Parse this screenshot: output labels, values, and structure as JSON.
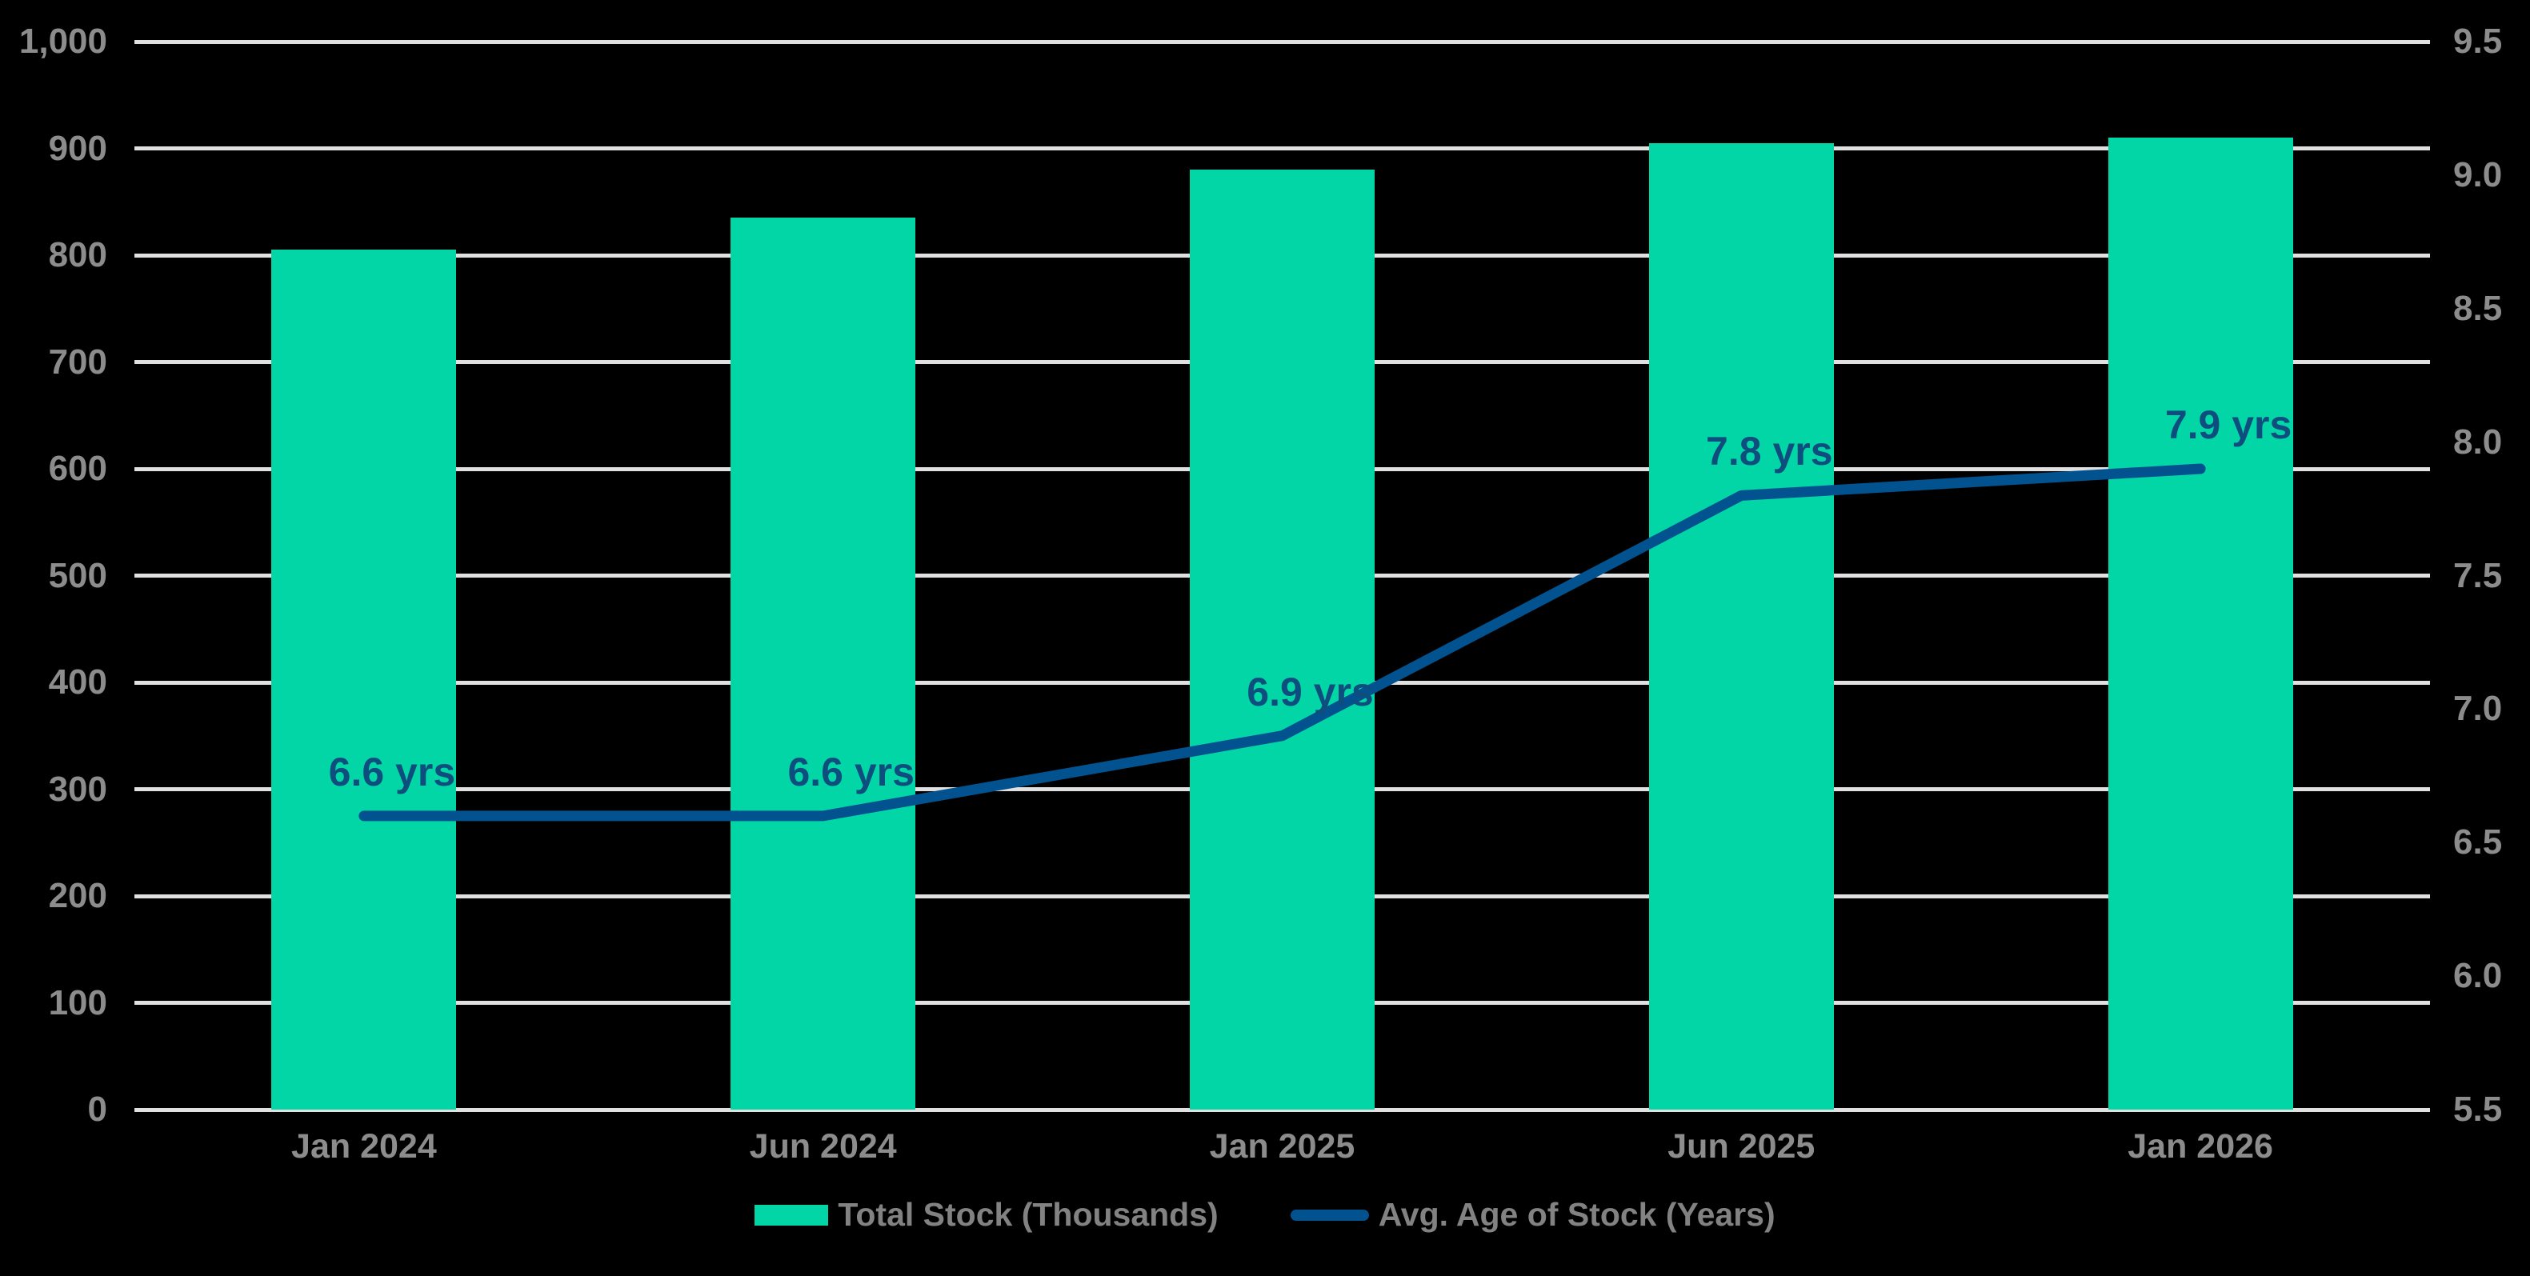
{
  "chart_data": {
    "type": "combo-bar-line",
    "categories": [
      "Jan 2024",
      "Jun 2024",
      "Jan 2025",
      "Jun 2025",
      "Jan 2026"
    ],
    "series": [
      {
        "name": "Total Stock (Thousands)",
        "type": "bar",
        "color": "#02D6A6",
        "values": [
          805,
          835,
          880,
          905,
          910
        ]
      },
      {
        "name": "Avg. Age of Stock (Years)",
        "type": "line",
        "color": "#02528F",
        "values": [
          6.6,
          6.6,
          6.9,
          7.8,
          7.9
        ],
        "point_labels": [
          "6.6 yrs",
          "6.6 yrs",
          "6.9 yrs",
          "7.8 yrs",
          "7.9 yrs"
        ]
      }
    ],
    "left_axis": {
      "min": 0,
      "max": 1000,
      "tick_values": [
        0,
        100,
        200,
        300,
        400,
        500,
        600,
        700,
        800,
        900,
        1000
      ],
      "tick_labels": [
        "0",
        "100",
        "200",
        "300",
        "400",
        "500",
        "600",
        "700",
        "800",
        "900",
        "1,000"
      ]
    },
    "right_axis": {
      "min": 5.5,
      "max": 9.5,
      "tick_values": [
        5.5,
        6.0,
        6.5,
        7.0,
        7.5,
        8.0,
        8.5,
        9.0,
        9.5
      ],
      "tick_labels": [
        "5.5",
        "6.0",
        "6.5",
        "7.0",
        "7.5",
        "8.0",
        "8.5",
        "9.0",
        "9.5"
      ]
    },
    "grid": true,
    "legend_position": "bottom",
    "colors": {
      "background": "#000000",
      "gridline": "#E0E0E0",
      "axis_text": "#8C8C8C",
      "legend_text": "#828282",
      "point_label_text": "#0E4E7E"
    }
  }
}
